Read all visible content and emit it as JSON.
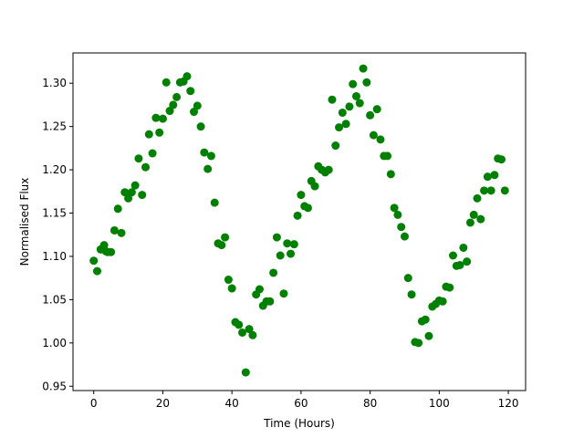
{
  "chart_data": {
    "type": "scatter",
    "title": "",
    "xlabel": "Time (Hours)",
    "ylabel": "Normalised Flux",
    "xlim": [
      -6,
      125
    ],
    "ylim": [
      0.945,
      1.335
    ],
    "xticks": [
      0,
      20,
      40,
      60,
      80,
      100,
      120
    ],
    "xtick_labels": [
      "0",
      "20",
      "40",
      "60",
      "80",
      "100",
      "120"
    ],
    "yticks": [
      0.95,
      1.0,
      1.05,
      1.1,
      1.15,
      1.2,
      1.25,
      1.3
    ],
    "ytick_labels": [
      "0.95",
      "1.00",
      "1.05",
      "1.10",
      "1.15",
      "1.20",
      "1.25",
      "1.30"
    ],
    "grid": false,
    "marker_color": "#008000",
    "series": [
      {
        "x": [
          0.0,
          1.0,
          2.0,
          3.0,
          3.5,
          4.0,
          5.0,
          6.0,
          7.0,
          8.0,
          9.0,
          10.0,
          11.0,
          12.0,
          13.0,
          14.0,
          15.0,
          16.0,
          17.0,
          18.0,
          19.0,
          20.0,
          21.0,
          22.0,
          23.0,
          24.0,
          25.0,
          26.0,
          27.0,
          28.0,
          29.0,
          30.0,
          31.0,
          32.0,
          33.0,
          34.0,
          35.0,
          36.0,
          37.0,
          38.0,
          39.0,
          40.0,
          41.0,
          42.0,
          43.0,
          44.0,
          45.0,
          46.0,
          47.0,
          48.0,
          49.0,
          50.0,
          51.0,
          52.0,
          53.0,
          54.0,
          55.0,
          56.0,
          57.0,
          58.0,
          59.0,
          60.0,
          61.0,
          62.0,
          63.0,
          64.0,
          65.0,
          66.0,
          67.0,
          68.0,
          69.0,
          70.0,
          71.0,
          72.0,
          73.0,
          74.0,
          75.0,
          76.0,
          77.0,
          78.0,
          79.0,
          80.0,
          81.0,
          82.0,
          83.0,
          84.0,
          85.0,
          86.0,
          87.0,
          88.0,
          89.0,
          90.0,
          91.0,
          92.0,
          93.0,
          94.0,
          95.0,
          96.0,
          97.0,
          98.0,
          99.0,
          100.0,
          101.0,
          102.0,
          103.0,
          104.0,
          105.0,
          106.0,
          107.0,
          108.0,
          109.0,
          110.0,
          111.0,
          112.0,
          113.0,
          114.0,
          115.0,
          116.0,
          117.0,
          118.0,
          119.0
        ],
        "y": [
          1.095,
          1.083,
          1.108,
          1.113,
          1.106,
          1.105,
          1.105,
          1.13,
          1.155,
          1.127,
          1.174,
          1.167,
          1.174,
          1.182,
          1.213,
          1.171,
          1.203,
          1.241,
          1.219,
          1.26,
          1.243,
          1.259,
          1.301,
          1.268,
          1.275,
          1.284,
          1.301,
          1.302,
          1.308,
          1.291,
          1.267,
          1.274,
          1.25,
          1.22,
          1.201,
          1.216,
          1.162,
          1.115,
          1.113,
          1.122,
          1.073,
          1.063,
          1.024,
          1.021,
          1.012,
          0.966,
          1.016,
          1.009,
          1.056,
          1.062,
          1.043,
          1.048,
          1.048,
          1.081,
          1.122,
          1.101,
          1.057,
          1.115,
          1.103,
          1.114,
          1.147,
          1.171,
          1.158,
          1.156,
          1.187,
          1.181,
          1.204,
          1.2,
          1.197,
          1.2,
          1.281,
          1.228,
          1.249,
          1.266,
          1.253,
          1.273,
          1.299,
          1.285,
          1.277,
          1.317,
          1.301,
          1.263,
          1.24,
          1.27,
          1.235,
          1.216,
          1.216,
          1.195,
          1.156,
          1.148,
          1.134,
          1.123,
          1.075,
          1.056,
          1.001,
          1.0,
          1.025,
          1.027,
          1.008,
          1.042,
          1.045,
          1.049,
          1.048,
          1.065,
          1.064,
          1.101,
          1.089,
          1.09,
          1.11,
          1.094,
          1.139,
          1.148,
          1.167,
          1.143,
          1.176,
          1.192,
          1.176,
          1.194,
          1.213,
          1.212,
          1.176
        ]
      }
    ]
  }
}
